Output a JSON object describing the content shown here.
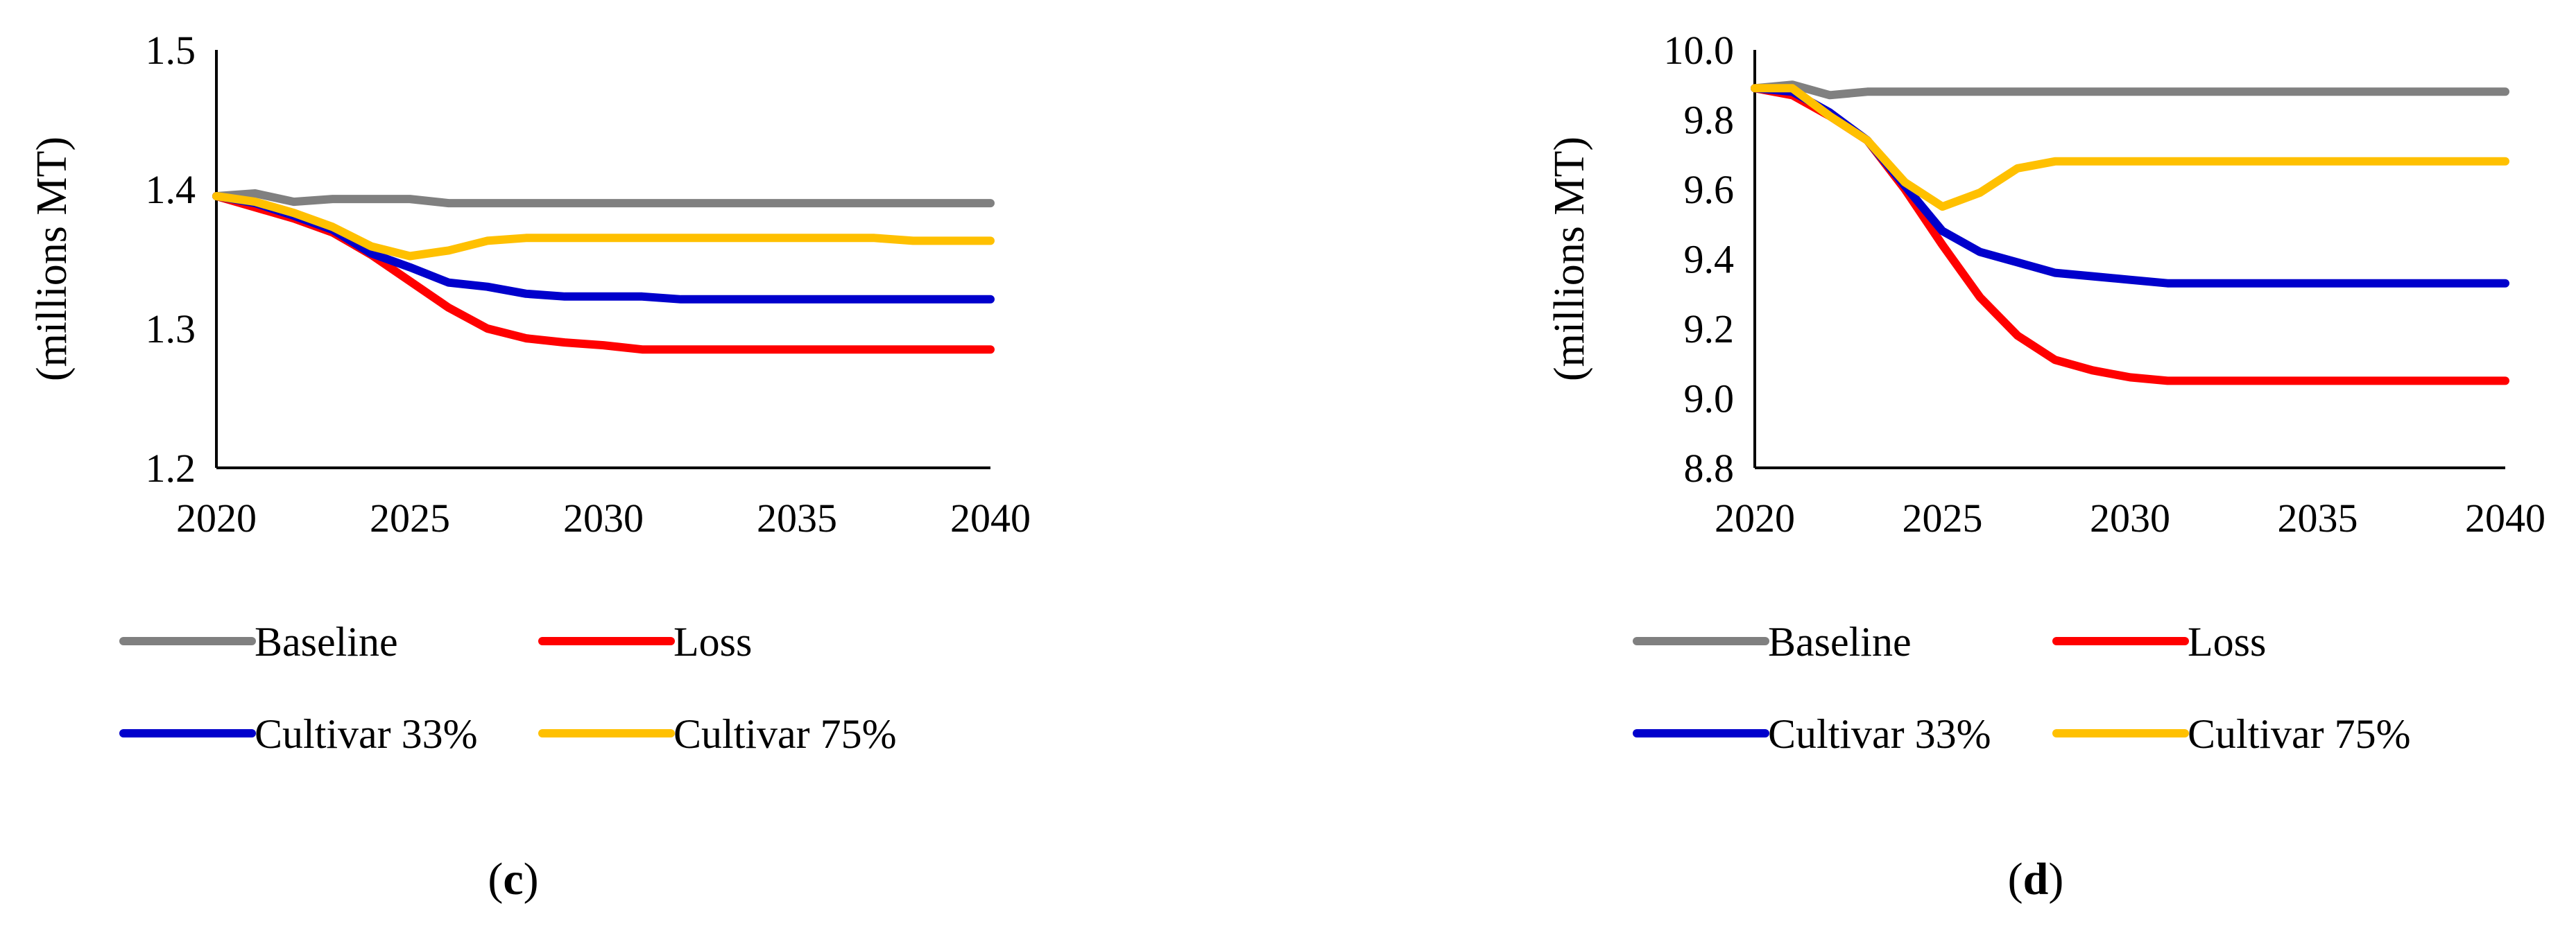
{
  "chart_data": [
    {
      "type": "line",
      "panel_label": "c",
      "ylabel": "(millions MT)",
      "xlabel": "",
      "title": "",
      "xlim": [
        2020,
        2040
      ],
      "ylim": [
        1.2,
        1.5
      ],
      "x_ticks": [
        "2020",
        "2025",
        "2030",
        "2035",
        "2040"
      ],
      "y_ticks": [
        "1.2",
        "1.3",
        "1.4",
        "1.5"
      ],
      "grid": false,
      "legend_position": "bottom",
      "x": [
        2020,
        2021,
        2022,
        2023,
        2024,
        2025,
        2026,
        2027,
        2028,
        2029,
        2030,
        2031,
        2032,
        2033,
        2034,
        2035,
        2036,
        2037,
        2038,
        2039,
        2040
      ],
      "series": [
        {
          "name": "Baseline",
          "color": "#808080",
          "values": [
            1.395,
            1.397,
            1.391,
            1.393,
            1.393,
            1.393,
            1.39,
            1.39,
            1.39,
            1.39,
            1.39,
            1.39,
            1.39,
            1.39,
            1.39,
            1.39,
            1.39,
            1.39,
            1.39,
            1.39,
            1.39
          ]
        },
        {
          "name": "Loss",
          "color": "#ff0000",
          "values": [
            1.395,
            1.387,
            1.379,
            1.369,
            1.353,
            1.334,
            1.315,
            1.3,
            1.293,
            1.29,
            1.288,
            1.285,
            1.285,
            1.285,
            1.285,
            1.285,
            1.285,
            1.285,
            1.285,
            1.285,
            1.285
          ]
        },
        {
          "name": "Cultivar 33%",
          "color": "#0000cc",
          "values": [
            1.395,
            1.39,
            1.381,
            1.371,
            1.354,
            1.344,
            1.333,
            1.33,
            1.325,
            1.323,
            1.323,
            1.323,
            1.321,
            1.321,
            1.321,
            1.321,
            1.321,
            1.321,
            1.321,
            1.321,
            1.321
          ]
        },
        {
          "name": "Cultivar 75%",
          "color": "#ffc000",
          "values": [
            1.395,
            1.391,
            1.383,
            1.373,
            1.359,
            1.352,
            1.356,
            1.363,
            1.365,
            1.365,
            1.365,
            1.365,
            1.365,
            1.365,
            1.365,
            1.365,
            1.365,
            1.365,
            1.363,
            1.363,
            1.363
          ]
        }
      ]
    },
    {
      "type": "line",
      "panel_label": "d",
      "ylabel": "(millions MT)",
      "xlabel": "",
      "title": "",
      "xlim": [
        2020,
        2040
      ],
      "ylim": [
        8.8,
        10.0
      ],
      "x_ticks": [
        "2020",
        "2025",
        "2030",
        "2035",
        "2040"
      ],
      "y_ticks": [
        "8.8",
        "9.0",
        "9.2",
        "9.4",
        "9.6",
        "9.8",
        "10.0"
      ],
      "grid": false,
      "legend_position": "bottom",
      "x": [
        2020,
        2021,
        2022,
        2023,
        2024,
        2025,
        2026,
        2027,
        2028,
        2029,
        2030,
        2031,
        2032,
        2033,
        2034,
        2035,
        2036,
        2037,
        2038,
        2039,
        2040
      ],
      "series": [
        {
          "name": "Baseline",
          "color": "#808080",
          "values": [
            9.89,
            9.9,
            9.87,
            9.88,
            9.88,
            9.88,
            9.88,
            9.88,
            9.88,
            9.88,
            9.88,
            9.88,
            9.88,
            9.88,
            9.88,
            9.88,
            9.88,
            9.88,
            9.88,
            9.88,
            9.88
          ]
        },
        {
          "name": "Loss",
          "color": "#ff0000",
          "values": [
            9.89,
            9.87,
            9.81,
            9.74,
            9.6,
            9.44,
            9.29,
            9.18,
            9.11,
            9.08,
            9.06,
            9.05,
            9.05,
            9.05,
            9.05,
            9.05,
            9.05,
            9.05,
            9.05,
            9.05,
            9.05
          ]
        },
        {
          "name": "Cultivar 33%",
          "color": "#0000cc",
          "values": [
            9.89,
            9.88,
            9.82,
            9.74,
            9.61,
            9.48,
            9.42,
            9.39,
            9.36,
            9.35,
            9.34,
            9.33,
            9.33,
            9.33,
            9.33,
            9.33,
            9.33,
            9.33,
            9.33,
            9.33,
            9.33
          ]
        },
        {
          "name": "Cultivar 75%",
          "color": "#ffc000",
          "values": [
            9.89,
            9.89,
            9.81,
            9.74,
            9.62,
            9.55,
            9.59,
            9.66,
            9.68,
            9.68,
            9.68,
            9.68,
            9.68,
            9.68,
            9.68,
            9.68,
            9.68,
            9.68,
            9.68,
            9.68,
            9.68
          ]
        }
      ]
    }
  ]
}
